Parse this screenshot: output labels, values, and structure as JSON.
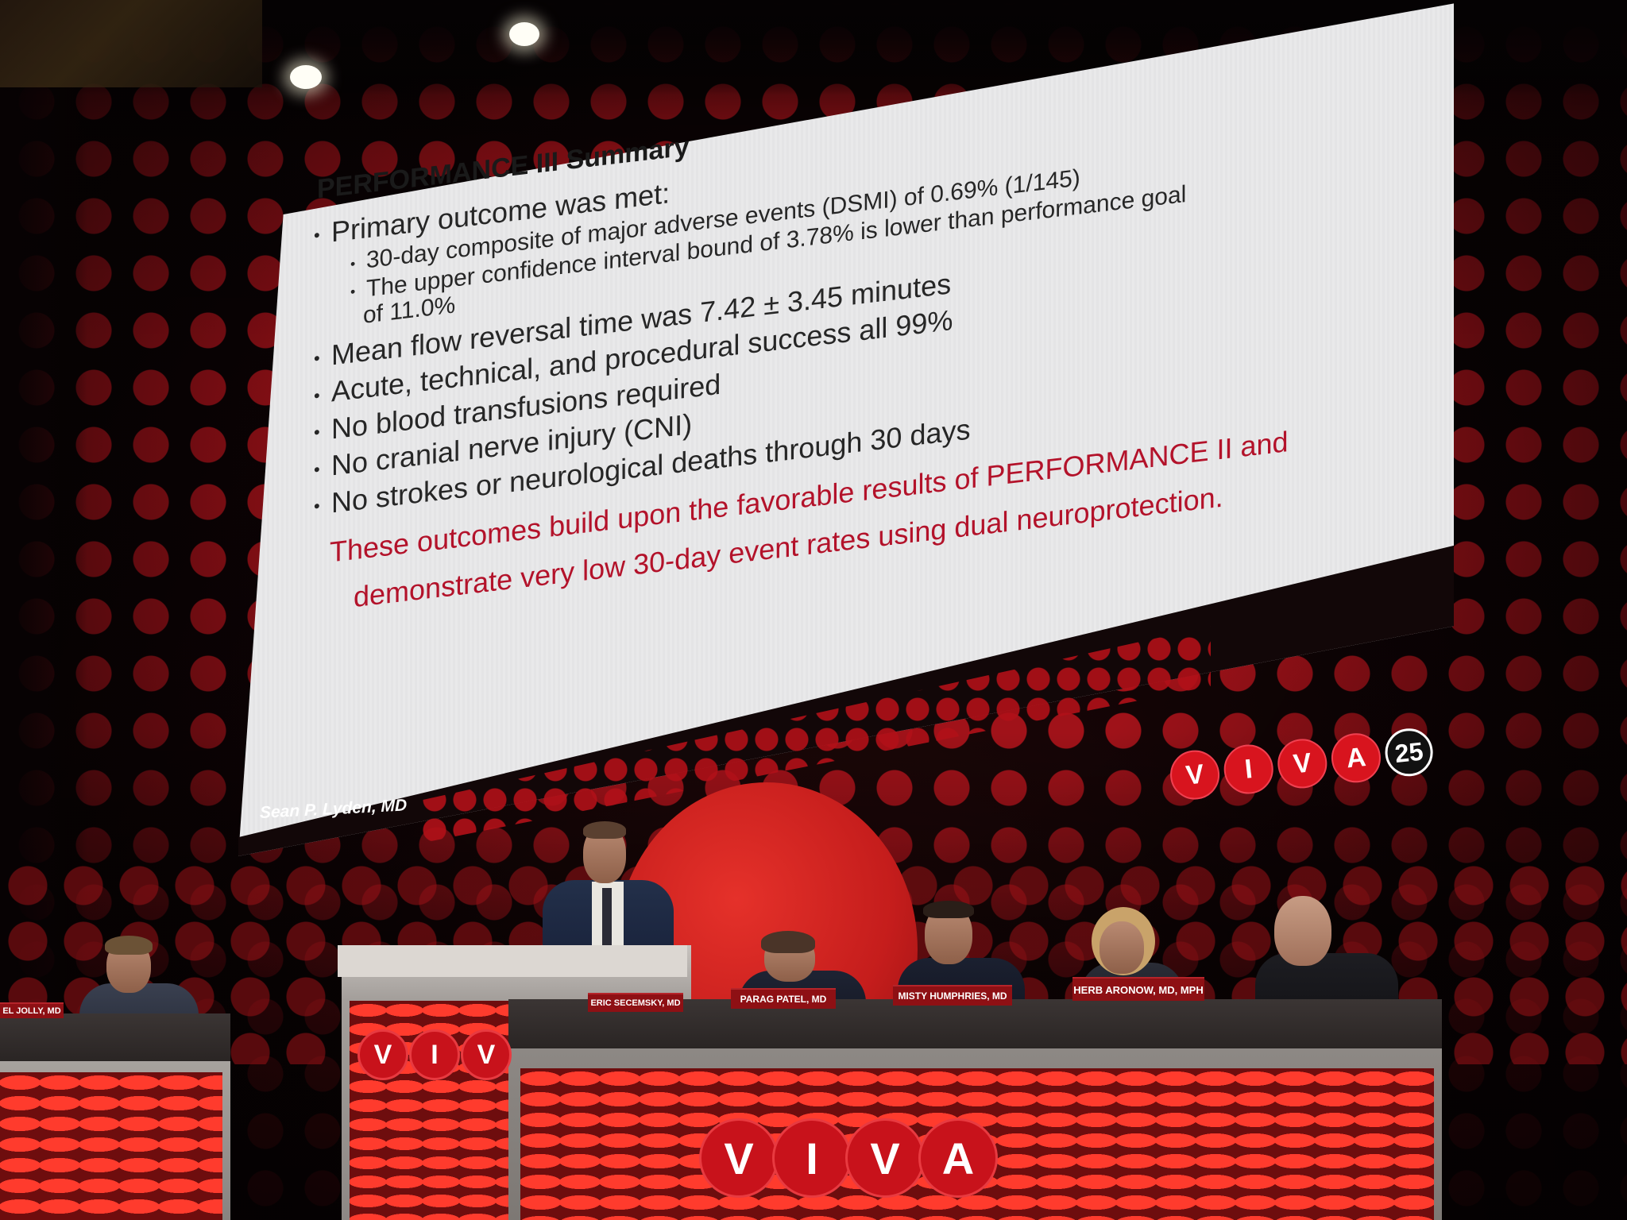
{
  "slide": {
    "title": "PERFORMANCE III Summary",
    "bullets": [
      "Primary outcome was met:",
      "Mean flow reversal time was 7.42 ± 3.45 minutes",
      "Acute, technical, and procedural success all 99%",
      "No blood transfusions required",
      "No cranial nerve injury (CNI)",
      "No strokes or neurological deaths through 30 days"
    ],
    "subbullets": [
      "30-day composite of major adverse events (DSMI) of 0.69% (1/145)",
      "The upper confidence interval bound of 3.78% is lower than performance goal"
    ],
    "subbullet_continuation": "of 11.0%",
    "note_line1": "These outcomes build upon the favorable results of PERFORMANCE II and",
    "note_line2": "demonstrate very low 30-day event rates using dual neuroprotection.",
    "presenter": "Sean P. Lyden, MD",
    "accent_color": "#b3122a"
  },
  "logo": {
    "letters": [
      "V",
      "I",
      "V",
      "A"
    ],
    "year": "25"
  },
  "stage": {
    "podium_letters": [
      "V",
      "I",
      "V"
    ],
    "desk_letters": [
      "V",
      "I",
      "V",
      "A"
    ],
    "nameplates": {
      "far_left": "EL JOLLY, MD",
      "eric": "ERIC SECEMSKY, MD",
      "parag": "PARAG PATEL, MD",
      "misty": "MISTY HUMPHRIES, MD",
      "herb": "HERB ARONOW, MD, MPH"
    }
  }
}
